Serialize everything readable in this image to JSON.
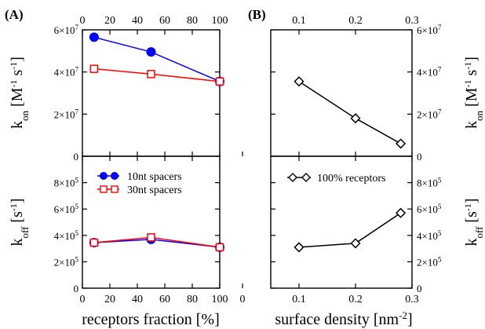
{
  "chart_data": [
    {
      "panel_label": "(A)",
      "type": "line",
      "x_top_ticks": [
        "0",
        "20",
        "40",
        "60",
        "80",
        "100"
      ],
      "x_bottom_ticks": [
        "0",
        "20",
        "40",
        "60",
        "80",
        "100"
      ],
      "xlim": [
        0,
        100
      ],
      "xlabel": "receptors fraction [%]",
      "top": {
        "ylabel_main": "k",
        "ylabel_sub": "on",
        "ylabel_unit": " [M",
        "ylabel_unit2": " s",
        "ylabel_end": "]",
        "sup_m1": "-1",
        "ylim": [
          0,
          60000000
        ],
        "yticks": [
          {
            "v": 0,
            "m": "0",
            "e": ""
          },
          {
            "v": 20000000,
            "m": "2×10",
            "e": "7"
          },
          {
            "v": 40000000,
            "m": "4×10",
            "e": "7"
          },
          {
            "v": 60000000,
            "m": "6×10",
            "e": "7"
          }
        ],
        "series": [
          {
            "name": "10nt spacers",
            "color": "#0000ff",
            "marker": "circle",
            "x": [
              8.5,
              50,
              100
            ],
            "y": [
              56500000,
              49500000,
              35500000
            ]
          },
          {
            "name": "30nt spacers",
            "color": "#ff0000",
            "marker": "square",
            "x": [
              8.5,
              50,
              100
            ],
            "y": [
              41500000,
              39000000,
              35500000
            ]
          }
        ]
      },
      "bottom": {
        "ylabel_main": "k",
        "ylabel_sub": "off",
        "ylabel_unit": " [s",
        "ylabel_end": "]",
        "sup_m1": "-1",
        "ylim": [
          0,
          1000000
        ],
        "yticks": [
          {
            "v": 0,
            "m": "0",
            "e": ""
          },
          {
            "v": 200000,
            "m": "2×10",
            "e": "5"
          },
          {
            "v": 400000,
            "m": "4×10",
            "e": "5"
          },
          {
            "v": 600000,
            "m": "6×10",
            "e": "5"
          },
          {
            "v": 800000,
            "m": "8×10",
            "e": "5"
          }
        ],
        "legend_position": "top-left",
        "series": [
          {
            "name": "10nt spacers",
            "color": "#0000ff",
            "marker": "circle",
            "x": [
              8.5,
              50,
              100
            ],
            "y": [
              345000,
              370000,
              310000
            ]
          },
          {
            "name": "30nt spacers",
            "color": "#ff0000",
            "marker": "square",
            "x": [
              8.5,
              50,
              100
            ],
            "y": [
              345000,
              385000,
              310000
            ]
          }
        ]
      }
    },
    {
      "panel_label": "(B)",
      "type": "line",
      "x_top_ticks": [
        "0.1",
        "0.2",
        "0.3"
      ],
      "x_bottom_ticks": [
        "0",
        "0.1",
        "0.2",
        "0.3"
      ],
      "xlim": [
        0.05,
        0.3
      ],
      "xlabel": "surface density [nm",
      "xlabel_sup": "-2",
      "xlabel_end": "]",
      "top": {
        "ylim": [
          0,
          60000000
        ],
        "yticks": [
          {
            "v": 0,
            "m": "0",
            "e": ""
          },
          {
            "v": 20000000,
            "m": "2×10",
            "e": "7"
          },
          {
            "v": 40000000,
            "m": "4×10",
            "e": "7"
          },
          {
            "v": 60000000,
            "m": "6×10",
            "e": "7"
          }
        ],
        "series": [
          {
            "name": "100% receptors",
            "color": "#000000",
            "marker": "diamond",
            "x": [
              0.1,
              0.2,
              0.28
            ],
            "y": [
              35500000,
              18000000,
              6000000
            ]
          }
        ]
      },
      "bottom": {
        "ylim": [
          0,
          1000000
        ],
        "yticks": [
          {
            "v": 0,
            "m": "0",
            "e": ""
          },
          {
            "v": 200000,
            "m": "2×10",
            "e": "5"
          },
          {
            "v": 400000,
            "m": "4×10",
            "e": "5"
          },
          {
            "v": 600000,
            "m": "6×10",
            "e": "5"
          },
          {
            "v": 800000,
            "m": "8×10",
            "e": "5"
          }
        ],
        "legend_position": "top-left",
        "series": [
          {
            "name": "100% receptors",
            "color": "#000000",
            "marker": "diamond",
            "x": [
              0.1,
              0.2,
              0.28
            ],
            "y": [
              310000,
              340000,
              570000
            ]
          }
        ]
      }
    }
  ]
}
